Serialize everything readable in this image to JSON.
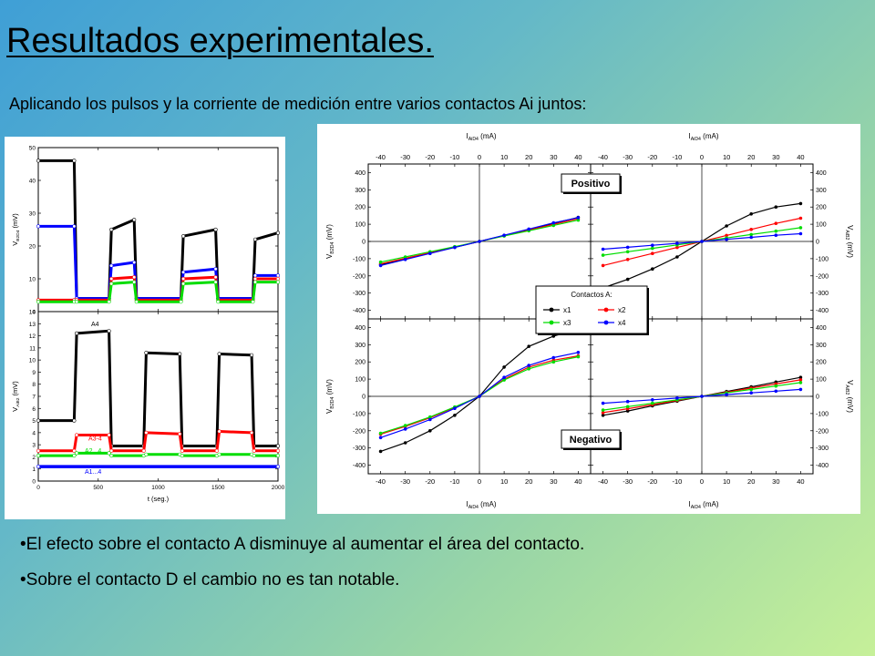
{
  "slide": {
    "title": "Resultados experimentales.",
    "subtitle": "Aplicando los pulsos y la corriente de medición entre varios contactos Ai juntos:",
    "bullets": [
      "El efecto sobre el contacto A disminuye al aumentar el área del contacto.",
      "Sobre el contacto D el cambio no es tan notable."
    ]
  },
  "colors": {
    "background_start": "#3f9fd6",
    "background_end": "#c6f099",
    "series_black": "#000000",
    "series_red": "#ff0000",
    "series_green": "#00dd00",
    "series_blue": "#0000ff"
  },
  "chart_data": [
    {
      "type": "line",
      "panel": "left-top",
      "ylabel": "V_B2D4 (mV)",
      "xlim": [
        0,
        2000
      ],
      "ylim": [
        0,
        50
      ],
      "yticks": [
        0,
        10,
        20,
        30,
        40,
        50
      ],
      "xticks": [
        0,
        500,
        1000,
        1500,
        2000
      ],
      "series": [
        {
          "color": "black",
          "values": [
            [
              0,
              46
            ],
            [
              300,
              46
            ],
            [
              320,
              4
            ],
            [
              590,
              4
            ],
            [
              610,
              25
            ],
            [
              800,
              28
            ],
            [
              820,
              4
            ],
            [
              1190,
              4
            ],
            [
              1210,
              23
            ],
            [
              1480,
              25
            ],
            [
              1500,
              4
            ],
            [
              1790,
              4
            ],
            [
              1810,
              22
            ],
            [
              2000,
              24
            ]
          ]
        },
        {
          "color": "blue",
          "values": [
            [
              0,
              26
            ],
            [
              300,
              26
            ],
            [
              320,
              4
            ],
            [
              590,
              4
            ],
            [
              610,
              14
            ],
            [
              800,
              15
            ],
            [
              820,
              4
            ],
            [
              1190,
              4
            ],
            [
              1210,
              12
            ],
            [
              1480,
              13
            ],
            [
              1500,
              4
            ],
            [
              1790,
              4
            ],
            [
              1810,
              11
            ],
            [
              2000,
              11
            ]
          ]
        },
        {
          "color": "red",
          "values": [
            [
              0,
              3.5
            ],
            [
              300,
              3.5
            ],
            [
              320,
              3.5
            ],
            [
              590,
              3.5
            ],
            [
              610,
              10
            ],
            [
              800,
              10.5
            ],
            [
              820,
              3.5
            ],
            [
              1190,
              3.5
            ],
            [
              1210,
              10
            ],
            [
              1480,
              10.5
            ],
            [
              1500,
              3.5
            ],
            [
              1790,
              3.5
            ],
            [
              1810,
              10
            ],
            [
              2000,
              10
            ]
          ]
        },
        {
          "color": "green",
          "values": [
            [
              0,
              3
            ],
            [
              300,
              3
            ],
            [
              320,
              3
            ],
            [
              590,
              3
            ],
            [
              610,
              8.5
            ],
            [
              800,
              9
            ],
            [
              820,
              3
            ],
            [
              1190,
              3
            ],
            [
              1210,
              8.5
            ],
            [
              1480,
              9
            ],
            [
              1500,
              3
            ],
            [
              1790,
              3
            ],
            [
              1810,
              9
            ],
            [
              2000,
              9
            ]
          ]
        }
      ]
    },
    {
      "type": "line",
      "panel": "left-bottom",
      "xlabel": "t (seg.)",
      "ylabel": "V_AiB2 (mV)",
      "xlim": [
        0,
        2000
      ],
      "ylim": [
        0,
        14
      ],
      "yticks": [
        0,
        1,
        2,
        3,
        4,
        5,
        6,
        7,
        8,
        9,
        10,
        11,
        12,
        13,
        14
      ],
      "xticks": [
        0,
        500,
        1000,
        1500,
        2000
      ],
      "annotations": [
        "A4",
        "A3-4",
        "A2...4",
        "A1...4"
      ],
      "series": [
        {
          "color": "black",
          "values": [
            [
              0,
              5
            ],
            [
              300,
              5
            ],
            [
              320,
              12.2
            ],
            [
              590,
              12.4
            ],
            [
              610,
              2.9
            ],
            [
              880,
              2.9
            ],
            [
              900,
              10.6
            ],
            [
              1180,
              10.5
            ],
            [
              1200,
              2.9
            ],
            [
              1490,
              2.9
            ],
            [
              1510,
              10.5
            ],
            [
              1780,
              10.4
            ],
            [
              1800,
              2.9
            ],
            [
              2000,
              2.9
            ]
          ]
        },
        {
          "color": "red",
          "values": [
            [
              0,
              2.5
            ],
            [
              300,
              2.5
            ],
            [
              320,
              3.8
            ],
            [
              590,
              3.8
            ],
            [
              610,
              2.5
            ],
            [
              880,
              2.5
            ],
            [
              900,
              4
            ],
            [
              1180,
              3.9
            ],
            [
              1200,
              2.5
            ],
            [
              1490,
              2.5
            ],
            [
              1510,
              4.1
            ],
            [
              1780,
              4
            ],
            [
              1800,
              2.5
            ],
            [
              2000,
              2.5
            ]
          ]
        },
        {
          "color": "green",
          "values": [
            [
              0,
              2.1
            ],
            [
              300,
              2.1
            ],
            [
              320,
              2.3
            ],
            [
              590,
              2.3
            ],
            [
              610,
              2.1
            ],
            [
              880,
              2.1
            ],
            [
              900,
              2.2
            ],
            [
              1180,
              2.2
            ],
            [
              1200,
              2.1
            ],
            [
              1490,
              2.1
            ],
            [
              1510,
              2.2
            ],
            [
              1780,
              2.2
            ],
            [
              1800,
              2.1
            ],
            [
              2000,
              2.1
            ]
          ]
        },
        {
          "color": "blue",
          "values": [
            [
              0,
              1.2
            ],
            [
              2000,
              1.2
            ]
          ]
        }
      ]
    },
    {
      "type": "scatter",
      "panel": "right-top",
      "title": "Positivo",
      "xlabel_top": "I_AiD4 (mA)",
      "xlabel_top_right": "I_AiD4 (mA)",
      "ylabel_left": "V_B2D4(mV)",
      "ylabel_right": "V_AiB2(mV)",
      "xlim": [
        -45,
        45
      ],
      "ylim": [
        -450,
        450
      ],
      "xticks": [
        -40,
        -30,
        -20,
        -10,
        0,
        10,
        20,
        30,
        40
      ],
      "yticks": [
        -400,
        -300,
        -200,
        -100,
        0,
        100,
        200,
        300,
        400
      ],
      "yticks_right": [
        -400,
        -300,
        -200,
        -100,
        0,
        100,
        200,
        300,
        400
      ],
      "left_series": [
        {
          "name": "x1",
          "color": "black",
          "x": [
            -40,
            -30,
            -20,
            -10,
            0,
            10,
            20,
            30,
            40
          ],
          "y": [
            -135,
            -101,
            -68,
            -34,
            0,
            35,
            70,
            105,
            140
          ]
        },
        {
          "name": "x2",
          "color": "red",
          "x": [
            -40,
            -30,
            -20,
            -10,
            0,
            10,
            20,
            30,
            40
          ],
          "y": [
            -130,
            -98,
            -65,
            -33,
            0,
            33,
            66,
            99,
            132
          ]
        },
        {
          "name": "x3",
          "color": "green",
          "x": [
            -40,
            -30,
            -20,
            -10,
            0,
            10,
            20,
            30,
            40
          ],
          "y": [
            -120,
            -90,
            -60,
            -30,
            0,
            31,
            62,
            93,
            124
          ]
        },
        {
          "name": "x4",
          "color": "blue",
          "x": [
            -40,
            -30,
            -20,
            -10,
            0,
            10,
            20,
            30,
            40
          ],
          "y": [
            -140,
            -105,
            -70,
            -35,
            0,
            36,
            72,
            108,
            138
          ]
        }
      ],
      "right_series": [
        {
          "name": "x1",
          "color": "black",
          "x": [
            -40,
            -30,
            -20,
            -10,
            0,
            10,
            20,
            30,
            40
          ],
          "y": [
            -270,
            -220,
            -160,
            -90,
            0,
            90,
            160,
            200,
            220
          ]
        },
        {
          "name": "x2",
          "color": "red",
          "x": [
            -40,
            -30,
            -20,
            -10,
            0,
            10,
            20,
            30,
            40
          ],
          "y": [
            -140,
            -105,
            -70,
            -35,
            0,
            35,
            70,
            105,
            135
          ]
        },
        {
          "name": "x3",
          "color": "green",
          "x": [
            -40,
            -30,
            -20,
            -10,
            0,
            10,
            20,
            30,
            40
          ],
          "y": [
            -80,
            -60,
            -40,
            -20,
            0,
            20,
            40,
            60,
            80
          ]
        },
        {
          "name": "x4",
          "color": "blue",
          "x": [
            -40,
            -30,
            -20,
            -10,
            0,
            10,
            20,
            30,
            40
          ],
          "y": [
            -45,
            -34,
            -22,
            -11,
            0,
            12,
            24,
            36,
            45
          ]
        }
      ]
    },
    {
      "type": "scatter",
      "panel": "right-bottom",
      "title": "Negativo",
      "xlabel_bottom": "I_AiD4 (mA)",
      "xlabel_bottom_right": "I_AiD4 (mA)",
      "ylabel_left": "V_B2D4(mV)",
      "ylabel_right": "V_AiB2(mV)",
      "xlim": [
        -45,
        45
      ],
      "ylim": [
        -450,
        450
      ],
      "xticks": [
        -40,
        -30,
        -20,
        -10,
        0,
        10,
        20,
        30,
        40
      ],
      "yticks": [
        -400,
        -300,
        -200,
        -100,
        0,
        100,
        200,
        300,
        400
      ],
      "yticks_right": [
        -400,
        -300,
        -200,
        -100,
        0,
        100,
        200,
        300,
        400
      ],
      "left_series": [
        {
          "name": "x1",
          "color": "black",
          "x": [
            -40,
            -30,
            -20,
            -10,
            0,
            10,
            20,
            30,
            40
          ],
          "y": [
            -320,
            -270,
            -200,
            -110,
            0,
            170,
            290,
            350,
            390
          ]
        },
        {
          "name": "x2",
          "color": "red",
          "x": [
            -40,
            -30,
            -20,
            -10,
            0,
            10,
            20,
            30,
            40
          ],
          "y": [
            -220,
            -175,
            -125,
            -65,
            0,
            100,
            170,
            210,
            235
          ]
        },
        {
          "name": "x3",
          "color": "green",
          "x": [
            -40,
            -30,
            -20,
            -10,
            0,
            10,
            20,
            30,
            40
          ],
          "y": [
            -215,
            -170,
            -120,
            -62,
            0,
            95,
            160,
            200,
            230
          ]
        },
        {
          "name": "x4",
          "color": "blue",
          "x": [
            -40,
            -30,
            -20,
            -10,
            0,
            10,
            20,
            30,
            40
          ],
          "y": [
            -240,
            -190,
            -135,
            -70,
            0,
            110,
            180,
            225,
            255
          ]
        }
      ],
      "right_series": [
        {
          "name": "x1",
          "color": "black",
          "x": [
            -40,
            -30,
            -20,
            -10,
            0,
            10,
            20,
            30,
            40
          ],
          "y": [
            -110,
            -85,
            -55,
            -28,
            0,
            28,
            55,
            83,
            110
          ]
        },
        {
          "name": "x2",
          "color": "red",
          "x": [
            -40,
            -30,
            -20,
            -10,
            0,
            10,
            20,
            30,
            40
          ],
          "y": [
            -95,
            -72,
            -48,
            -24,
            0,
            24,
            48,
            72,
            96
          ]
        },
        {
          "name": "x3",
          "color": "green",
          "x": [
            -40,
            -30,
            -20,
            -10,
            0,
            10,
            20,
            30,
            40
          ],
          "y": [
            -80,
            -60,
            -40,
            -20,
            0,
            20,
            40,
            60,
            80
          ]
        },
        {
          "name": "x4",
          "color": "blue",
          "x": [
            -40,
            -30,
            -20,
            -10,
            0,
            10,
            20,
            30,
            40
          ],
          "y": [
            -40,
            -30,
            -20,
            -10,
            0,
            10,
            20,
            30,
            40
          ]
        }
      ]
    }
  ],
  "legend": {
    "title": "Contactos A:",
    "entries": [
      {
        "label": "x1",
        "color": "black"
      },
      {
        "label": "x2",
        "color": "red"
      },
      {
        "label": "x3",
        "color": "green"
      },
      {
        "label": "x4",
        "color": "blue"
      }
    ]
  }
}
